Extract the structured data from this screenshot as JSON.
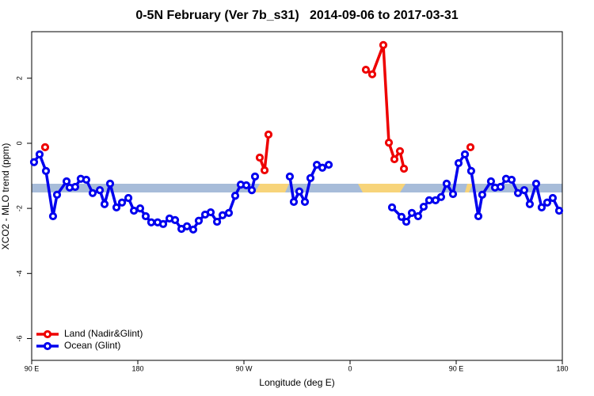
{
  "chart_data": {
    "type": "line",
    "title": "0-5N February (Ver 7b_s31)   2014-09-06 to 2017-03-31",
    "x_label": "Longitude (deg E)",
    "y_label": "XCO2 - MLO trend (ppm)",
    "xlim": [
      90,
      540
    ],
    "xticks": [
      {
        "value": 90,
        "label": "90 E"
      },
      180,
      {
        "value": 270,
        "label": "90 W"
      },
      {
        "value": 360,
        "label": "0"
      },
      {
        "value": 450,
        "label": "90 E"
      },
      {
        "value": 540,
        "label": "180"
      }
    ],
    "ylim": [
      -6.67,
      3.43
    ],
    "yticks": [
      -6,
      -4,
      -2,
      0,
      2
    ],
    "legend": "bottom-left",
    "series": [
      {
        "name": "Land (Nadir&Glint)",
        "color": "#ee0000",
        "x": [
          101.4,
          null,
          283.4,
          287.5,
          290.8,
          null,
          373.4,
          378.8,
          388.2,
          392.9,
          397.6,
          402.3,
          405.7,
          null,
          462.1
        ],
        "values": [
          -0.12,
          null,
          -0.44,
          -0.83,
          0.27,
          null,
          2.26,
          2.12,
          3.02,
          0.02,
          -0.49,
          -0.24,
          -0.78,
          null,
          -0.12
        ]
      },
      {
        "name": "Ocean (Glint)",
        "color": "#0000ee",
        "x": [
          92.0,
          96.7,
          102.1,
          108.1,
          111.5,
          119.6,
          122.2,
          126.9,
          131.6,
          136.3,
          141.7,
          147.8,
          151.8,
          156.5,
          161.9,
          166.6,
          172.0,
          176.7,
          182.0,
          186.7,
          191.4,
          196.8,
          201.5,
          206.9,
          211.6,
          217.0,
          221.7,
          227.0,
          231.7,
          237.1,
          241.8,
          247.2,
          251.9,
          257.2,
          262.6,
          267.3,
          272.0,
          276.7,
          279.4,
          null,
          308.9,
          312.3,
          317.0,
          321.7,
          326.4,
          331.8,
          336.5,
          341.9,
          null,
          395.6,
          403.6,
          407.7,
          412.4,
          417.7,
          422.4,
          427.1,
          432.5,
          437.2,
          441.9,
          447.3,
          452.0,
          457.4,
          462.7,
          468.8,
          472.1,
          479.5,
          482.9,
          487.6,
          492.3,
          497.0,
          502.4,
          507.7,
          512.4,
          517.8,
          522.5,
          527.2,
          531.9,
          537.3
        ],
        "values": [
          -0.58,
          -0.34,
          -0.85,
          -2.24,
          -1.58,
          -1.17,
          -1.36,
          -1.34,
          -1.09,
          -1.12,
          -1.53,
          -1.44,
          -1.87,
          -1.24,
          -1.97,
          -1.82,
          -1.68,
          -2.07,
          -2.0,
          -2.24,
          -2.43,
          -2.43,
          -2.48,
          -2.31,
          -2.36,
          -2.63,
          -2.55,
          -2.65,
          -2.38,
          -2.19,
          -2.12,
          -2.41,
          -2.21,
          -2.14,
          -1.61,
          -1.27,
          -1.29,
          -1.44,
          -1.02,
          null,
          -1.02,
          -1.8,
          -1.48,
          -1.8,
          -1.07,
          -0.66,
          -0.75,
          -0.66,
          null,
          -1.97,
          -2.26,
          -2.41,
          -2.14,
          -2.24,
          -1.95,
          -1.75,
          -1.75,
          -1.65,
          -1.24,
          -1.56,
          -0.61,
          -0.34,
          -0.85,
          -2.24,
          -1.58,
          -1.17,
          -1.36,
          -1.34,
          -1.09,
          -1.12,
          -1.53,
          -1.44,
          -1.87,
          -1.24,
          -1.97,
          -1.82,
          -1.68,
          -2.07
        ]
      }
    ]
  }
}
